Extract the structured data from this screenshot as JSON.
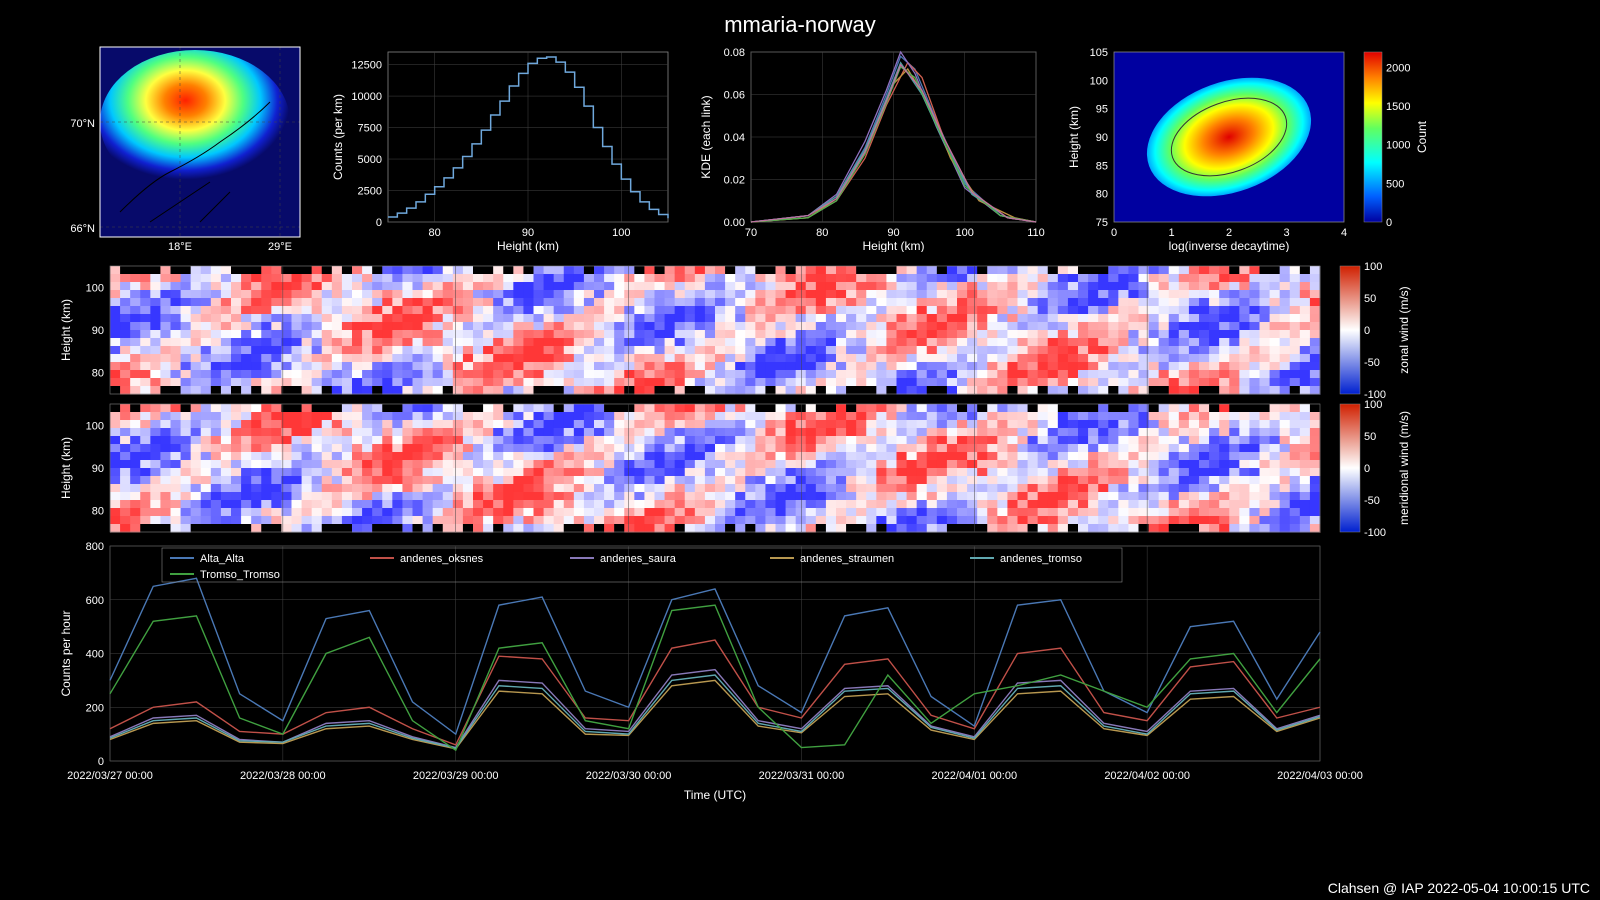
{
  "title": "mmaria-norway",
  "footer": "Clahsen @ IAP 2022-05-04 10:00:15 UTC",
  "panel_map": {
    "lat_ticks": [
      "66°N",
      "70°N"
    ],
    "lon_ticks": [
      "18°E",
      "29°E"
    ],
    "colors": {
      "bg": "#070a6a",
      "low": "#1020d0",
      "mid1": "#00c8ff",
      "mid2": "#50ff80",
      "mid3": "#f8ff40",
      "high": "#ff8000",
      "peak": "#ff2000",
      "land": "#000000"
    }
  },
  "panel_hist": {
    "xlabel": "Height (km)",
    "ylabel": "Counts (per km)",
    "xlim": [
      75,
      105
    ],
    "ylim": [
      0,
      13500
    ],
    "xticks": [
      80,
      90,
      100
    ],
    "yticks": [
      0,
      2500,
      5000,
      7500,
      10000,
      12500
    ],
    "data": [
      {
        "x": 75,
        "y": 400
      },
      {
        "x": 76,
        "y": 700
      },
      {
        "x": 77,
        "y": 1100
      },
      {
        "x": 78,
        "y": 1600
      },
      {
        "x": 79,
        "y": 2200
      },
      {
        "x": 80,
        "y": 2800
      },
      {
        "x": 81,
        "y": 3500
      },
      {
        "x": 82,
        "y": 4300
      },
      {
        "x": 83,
        "y": 5200
      },
      {
        "x": 84,
        "y": 6200
      },
      {
        "x": 85,
        "y": 7300
      },
      {
        "x": 86,
        "y": 8500
      },
      {
        "x": 87,
        "y": 9600
      },
      {
        "x": 88,
        "y": 10800
      },
      {
        "x": 89,
        "y": 11800
      },
      {
        "x": 90,
        "y": 12600
      },
      {
        "x": 91,
        "y": 13000
      },
      {
        "x": 92,
        "y": 13100
      },
      {
        "x": 93,
        "y": 12700
      },
      {
        "x": 94,
        "y": 11900
      },
      {
        "x": 95,
        "y": 10700
      },
      {
        "x": 96,
        "y": 9200
      },
      {
        "x": 97,
        "y": 7500
      },
      {
        "x": 98,
        "y": 6000
      },
      {
        "x": 99,
        "y": 4600
      },
      {
        "x": 100,
        "y": 3400
      },
      {
        "x": 101,
        "y": 2400
      },
      {
        "x": 102,
        "y": 1600
      },
      {
        "x": 103,
        "y": 1000
      },
      {
        "x": 104,
        "y": 600
      },
      {
        "x": 105,
        "y": 300
      }
    ],
    "line_color": "#6fa8dc"
  },
  "panel_kde": {
    "xlabel": "Height (km)",
    "ylabel": "KDE (each link)",
    "xlim": [
      70,
      110
    ],
    "ylim": [
      0,
      0.08
    ],
    "xticks": [
      70,
      80,
      90,
      100,
      110
    ],
    "yticks": [
      0.0,
      0.02,
      0.04,
      0.06,
      0.08
    ],
    "series_colors": [
      "#4a78b5",
      "#d06050",
      "#9070c0",
      "#c09040",
      "#50a0a0",
      "#50b050",
      "#c070a0"
    ],
    "series": [
      [
        {
          "x": 70,
          "y": 0
        },
        {
          "x": 78,
          "y": 0.003
        },
        {
          "x": 82,
          "y": 0.012
        },
        {
          "x": 86,
          "y": 0.035
        },
        {
          "x": 89,
          "y": 0.06
        },
        {
          "x": 91,
          "y": 0.078
        },
        {
          "x": 93,
          "y": 0.072
        },
        {
          "x": 96,
          "y": 0.048
        },
        {
          "x": 100,
          "y": 0.018
        },
        {
          "x": 105,
          "y": 0.003
        },
        {
          "x": 110,
          "y": 0
        }
      ],
      [
        {
          "x": 70,
          "y": 0
        },
        {
          "x": 78,
          "y": 0.002
        },
        {
          "x": 82,
          "y": 0.01
        },
        {
          "x": 86,
          "y": 0.03
        },
        {
          "x": 89,
          "y": 0.055
        },
        {
          "x": 92,
          "y": 0.075
        },
        {
          "x": 94,
          "y": 0.068
        },
        {
          "x": 97,
          "y": 0.04
        },
        {
          "x": 101,
          "y": 0.014
        },
        {
          "x": 106,
          "y": 0.002
        },
        {
          "x": 110,
          "y": 0
        }
      ],
      [
        {
          "x": 70,
          "y": 0
        },
        {
          "x": 78,
          "y": 0.003
        },
        {
          "x": 82,
          "y": 0.013
        },
        {
          "x": 86,
          "y": 0.038
        },
        {
          "x": 89,
          "y": 0.062
        },
        {
          "x": 91,
          "y": 0.08
        },
        {
          "x": 93,
          "y": 0.07
        },
        {
          "x": 96,
          "y": 0.045
        },
        {
          "x": 100,
          "y": 0.016
        },
        {
          "x": 105,
          "y": 0.003
        },
        {
          "x": 110,
          "y": 0
        }
      ],
      [
        {
          "x": 70,
          "y": 0
        },
        {
          "x": 78,
          "y": 0.002
        },
        {
          "x": 82,
          "y": 0.011
        },
        {
          "x": 86,
          "y": 0.032
        },
        {
          "x": 90,
          "y": 0.065
        },
        {
          "x": 92,
          "y": 0.072
        },
        {
          "x": 95,
          "y": 0.055
        },
        {
          "x": 98,
          "y": 0.03
        },
        {
          "x": 102,
          "y": 0.01
        },
        {
          "x": 107,
          "y": 0.002
        },
        {
          "x": 110,
          "y": 0
        }
      ],
      [
        {
          "x": 70,
          "y": 0
        },
        {
          "x": 78,
          "y": 0.003
        },
        {
          "x": 82,
          "y": 0.012
        },
        {
          "x": 86,
          "y": 0.034
        },
        {
          "x": 89,
          "y": 0.058
        },
        {
          "x": 91,
          "y": 0.075
        },
        {
          "x": 94,
          "y": 0.06
        },
        {
          "x": 97,
          "y": 0.038
        },
        {
          "x": 101,
          "y": 0.013
        },
        {
          "x": 106,
          "y": 0.002
        },
        {
          "x": 110,
          "y": 0
        }
      ],
      [
        {
          "x": 70,
          "y": 0
        },
        {
          "x": 78,
          "y": 0.002
        },
        {
          "x": 82,
          "y": 0.01
        },
        {
          "x": 86,
          "y": 0.032
        },
        {
          "x": 89,
          "y": 0.056
        },
        {
          "x": 91,
          "y": 0.073
        },
        {
          "x": 93,
          "y": 0.068
        },
        {
          "x": 96,
          "y": 0.046
        },
        {
          "x": 100,
          "y": 0.017
        },
        {
          "x": 105,
          "y": 0.003
        },
        {
          "x": 110,
          "y": 0
        }
      ],
      [
        {
          "x": 70,
          "y": 0
        },
        {
          "x": 78,
          "y": 0.003
        },
        {
          "x": 82,
          "y": 0.011
        },
        {
          "x": 86,
          "y": 0.033
        },
        {
          "x": 89,
          "y": 0.057
        },
        {
          "x": 91,
          "y": 0.074
        },
        {
          "x": 94,
          "y": 0.062
        },
        {
          "x": 97,
          "y": 0.04
        },
        {
          "x": 101,
          "y": 0.014
        },
        {
          "x": 106,
          "y": 0.002
        },
        {
          "x": 110,
          "y": 0
        }
      ]
    ]
  },
  "panel_heat": {
    "xlabel": "log(inverse decaytime)",
    "ylabel": "Height (km)",
    "xlim": [
      0,
      4
    ],
    "ylim": [
      75,
      105
    ],
    "xticks": [
      0,
      1,
      2,
      3,
      4
    ],
    "yticks": [
      75,
      80,
      85,
      90,
      95,
      100,
      105
    ],
    "clabel": "Count",
    "cticks": [
      0,
      500,
      1000,
      1500,
      2000
    ],
    "colors": {
      "bg": "#0000a0",
      "low": "#0060ff",
      "mid": "#00ffff",
      "mid2": "#60ff60",
      "mid3": "#ffff00",
      "high": "#ff8000",
      "peak": "#e00000"
    }
  },
  "time_axis": {
    "label": "Time (UTC)",
    "ticks": [
      "2022/03/27 00:00",
      "2022/03/28 00:00",
      "2022/03/29 00:00",
      "2022/03/30 00:00",
      "2022/03/31 00:00",
      "2022/04/01 00:00",
      "2022/04/02 00:00",
      "2022/04/03 00:00"
    ],
    "n": 8
  },
  "wind_panels": {
    "ylabel": "Height (km)",
    "yticks": [
      80,
      90,
      100
    ],
    "cticks": [
      -100,
      -50,
      0,
      50,
      100
    ],
    "zonal_label": "zonal wind (m/s)",
    "merid_label": "meridional wind (m/s)",
    "colors": {
      "neg": "#0020d0",
      "zero": "#ffffff",
      "pos": "#d02000"
    }
  },
  "counts_panel": {
    "ylabel": "Counts per hour",
    "ylim": [
      0,
      800
    ],
    "yticks": [
      0,
      200,
      400,
      600,
      800
    ],
    "legend": [
      "Alta_Alta",
      "andenes_oksnes",
      "andenes_saura",
      "andenes_straumen",
      "andenes_tromso",
      "Tromso_Tromso"
    ],
    "legend_colors": [
      "#4a78b5",
      "#c05048",
      "#8878b8",
      "#b89850",
      "#60a8b0",
      "#40a040"
    ],
    "series": {
      "Alta_Alta": [
        300,
        650,
        680,
        250,
        150,
        530,
        560,
        220,
        100,
        580,
        610,
        260,
        200,
        600,
        640,
        280,
        180,
        540,
        570,
        240,
        130,
        580,
        600,
        260,
        180,
        500,
        520,
        230,
        480
      ],
      "andenes_oksnes": [
        120,
        200,
        220,
        110,
        100,
        180,
        200,
        120,
        60,
        390,
        380,
        160,
        150,
        420,
        450,
        200,
        160,
        360,
        380,
        170,
        120,
        400,
        420,
        180,
        150,
        350,
        370,
        160,
        200
      ],
      "andenes_saura": [
        90,
        160,
        170,
        80,
        70,
        140,
        150,
        90,
        50,
        300,
        290,
        120,
        110,
        320,
        340,
        150,
        120,
        270,
        280,
        130,
        90,
        290,
        300,
        140,
        110,
        260,
        270,
        120,
        170
      ],
      "andenes_straumen": [
        80,
        140,
        150,
        70,
        65,
        120,
        130,
        80,
        45,
        260,
        250,
        100,
        95,
        280,
        300,
        130,
        105,
        240,
        250,
        115,
        80,
        250,
        260,
        120,
        95,
        230,
        240,
        110,
        160
      ],
      "andenes_tromso": [
        85,
        150,
        160,
        75,
        70,
        130,
        140,
        85,
        48,
        280,
        270,
        110,
        100,
        300,
        320,
        140,
        110,
        260,
        270,
        125,
        85,
        270,
        280,
        130,
        100,
        250,
        260,
        115,
        165
      ],
      "Tromso_Tromso": [
        250,
        520,
        540,
        160,
        100,
        400,
        460,
        150,
        40,
        420,
        440,
        150,
        120,
        560,
        580,
        200,
        50,
        60,
        320,
        140,
        250,
        280,
        320,
        260,
        200,
        380,
        400,
        180,
        380
      ]
    }
  }
}
